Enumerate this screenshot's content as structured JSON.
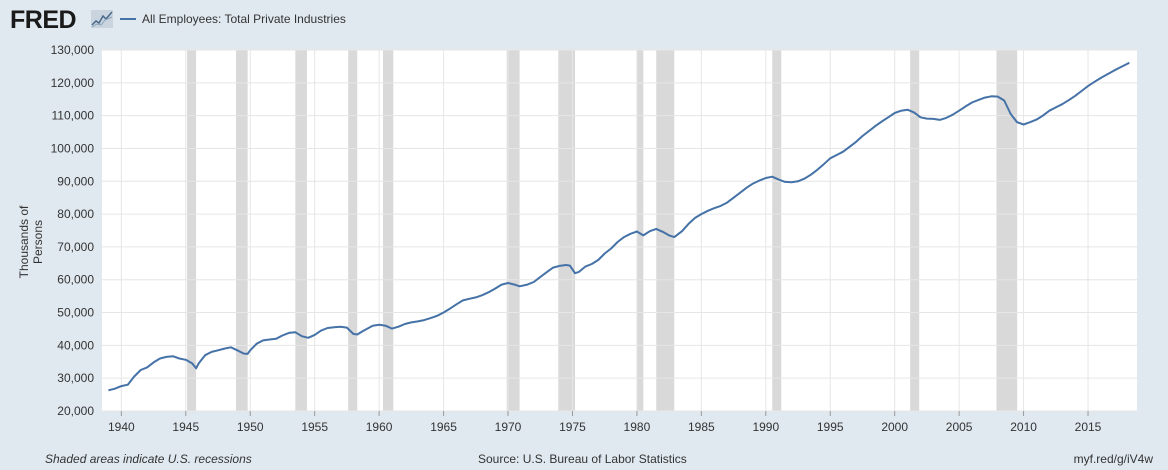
{
  "logo": {
    "text": "FRED",
    "icon": "fred-sparkline-icon"
  },
  "legend": {
    "label": "All Employees: Total Private Industries",
    "color": "#4572a7"
  },
  "footer": {
    "recession_note": "Shaded areas indicate U.S. recessions",
    "source": "Source: U.S. Bureau of Labor Statistics",
    "link": "myf.red/g/iV4w"
  },
  "chart_data": {
    "type": "line",
    "title": "",
    "xlabel": "",
    "ylabel": "Thousands of Persons",
    "ylim": [
      20000,
      130000
    ],
    "xlim": [
      1938.5,
      2018.8
    ],
    "yticks": [
      "20,000",
      "30,000",
      "40,000",
      "50,000",
      "60,000",
      "70,000",
      "80,000",
      "90,000",
      "100,000",
      "110,000",
      "120,000",
      "130,000"
    ],
    "xticks": [
      "1940",
      "1945",
      "1950",
      "1955",
      "1960",
      "1965",
      "1970",
      "1975",
      "1980",
      "1985",
      "1990",
      "1995",
      "2000",
      "2005",
      "2010",
      "2015"
    ],
    "grid": true,
    "legend_position": "top-left",
    "line_color": "#4572a7",
    "recession_color": "#d9d9d9",
    "recessions": [
      [
        1945.1,
        1945.8
      ],
      [
        1948.9,
        1949.8
      ],
      [
        1953.5,
        1954.4
      ],
      [
        1957.6,
        1958.3
      ],
      [
        1960.3,
        1961.1
      ],
      [
        1969.9,
        1970.9
      ],
      [
        1973.9,
        1975.2
      ],
      [
        1980.0,
        1980.5
      ],
      [
        1981.5,
        1982.9
      ],
      [
        1990.5,
        1991.2
      ],
      [
        2001.2,
        2001.9
      ],
      [
        2007.9,
        2009.5
      ]
    ],
    "series": [
      {
        "name": "All Employees: Total Private Industries",
        "points": [
          [
            1939.0,
            26300
          ],
          [
            1939.5,
            26800
          ],
          [
            1940.0,
            27600
          ],
          [
            1940.5,
            28000
          ],
          [
            1941.0,
            30500
          ],
          [
            1941.5,
            32500
          ],
          [
            1942.0,
            33300
          ],
          [
            1942.5,
            34800
          ],
          [
            1943.0,
            36000
          ],
          [
            1943.5,
            36500
          ],
          [
            1944.0,
            36700
          ],
          [
            1944.5,
            36000
          ],
          [
            1945.0,
            35600
          ],
          [
            1945.5,
            34500
          ],
          [
            1945.8,
            33000
          ],
          [
            1946.0,
            34500
          ],
          [
            1946.5,
            37000
          ],
          [
            1947.0,
            38000
          ],
          [
            1947.5,
            38500
          ],
          [
            1948.0,
            39000
          ],
          [
            1948.5,
            39400
          ],
          [
            1949.0,
            38500
          ],
          [
            1949.5,
            37500
          ],
          [
            1949.8,
            37400
          ],
          [
            1950.0,
            38500
          ],
          [
            1950.5,
            40500
          ],
          [
            1951.0,
            41500
          ],
          [
            1951.5,
            41800
          ],
          [
            1952.0,
            42000
          ],
          [
            1952.5,
            43000
          ],
          [
            1953.0,
            43800
          ],
          [
            1953.5,
            44000
          ],
          [
            1954.0,
            42800
          ],
          [
            1954.5,
            42300
          ],
          [
            1955.0,
            43200
          ],
          [
            1955.5,
            44500
          ],
          [
            1956.0,
            45300
          ],
          [
            1956.5,
            45500
          ],
          [
            1957.0,
            45700
          ],
          [
            1957.5,
            45400
          ],
          [
            1958.0,
            43500
          ],
          [
            1958.3,
            43300
          ],
          [
            1958.8,
            44500
          ],
          [
            1959.5,
            46000
          ],
          [
            1960.0,
            46300
          ],
          [
            1960.5,
            46000
          ],
          [
            1961.0,
            45100
          ],
          [
            1961.5,
            45700
          ],
          [
            1962.0,
            46500
          ],
          [
            1962.5,
            47000
          ],
          [
            1963.0,
            47300
          ],
          [
            1963.5,
            47700
          ],
          [
            1964.0,
            48300
          ],
          [
            1964.5,
            49000
          ],
          [
            1965.0,
            50000
          ],
          [
            1965.5,
            51200
          ],
          [
            1966.0,
            52500
          ],
          [
            1966.5,
            53700
          ],
          [
            1967.0,
            54200
          ],
          [
            1967.5,
            54600
          ],
          [
            1968.0,
            55300
          ],
          [
            1968.5,
            56200
          ],
          [
            1969.0,
            57300
          ],
          [
            1969.5,
            58500
          ],
          [
            1970.0,
            59000
          ],
          [
            1970.5,
            58500
          ],
          [
            1970.9,
            58000
          ],
          [
            1971.5,
            58500
          ],
          [
            1972.0,
            59300
          ],
          [
            1972.5,
            60800
          ],
          [
            1973.0,
            62300
          ],
          [
            1973.5,
            63700
          ],
          [
            1974.0,
            64200
          ],
          [
            1974.5,
            64500
          ],
          [
            1974.8,
            64300
          ],
          [
            1975.2,
            62000
          ],
          [
            1975.5,
            62400
          ],
          [
            1976.0,
            64000
          ],
          [
            1976.5,
            64800
          ],
          [
            1977.0,
            66000
          ],
          [
            1977.5,
            68000
          ],
          [
            1978.0,
            69500
          ],
          [
            1978.5,
            71500
          ],
          [
            1979.0,
            73000
          ],
          [
            1979.5,
            74000
          ],
          [
            1980.0,
            74700
          ],
          [
            1980.5,
            73500
          ],
          [
            1981.0,
            74800
          ],
          [
            1981.5,
            75500
          ],
          [
            1982.0,
            74600
          ],
          [
            1982.5,
            73500
          ],
          [
            1982.9,
            73000
          ],
          [
            1983.5,
            74800
          ],
          [
            1984.0,
            77000
          ],
          [
            1984.5,
            78800
          ],
          [
            1985.0,
            80000
          ],
          [
            1985.5,
            81000
          ],
          [
            1986.0,
            81800
          ],
          [
            1986.5,
            82500
          ],
          [
            1987.0,
            83500
          ],
          [
            1987.5,
            85000
          ],
          [
            1988.0,
            86500
          ],
          [
            1988.5,
            88000
          ],
          [
            1989.0,
            89300
          ],
          [
            1989.5,
            90200
          ],
          [
            1990.0,
            91000
          ],
          [
            1990.5,
            91400
          ],
          [
            1991.0,
            90500
          ],
          [
            1991.5,
            89800
          ],
          [
            1992.0,
            89700
          ],
          [
            1992.5,
            90000
          ],
          [
            1993.0,
            90800
          ],
          [
            1993.5,
            92000
          ],
          [
            1994.0,
            93500
          ],
          [
            1994.5,
            95200
          ],
          [
            1995.0,
            97000
          ],
          [
            1995.5,
            98000
          ],
          [
            1996.0,
            99000
          ],
          [
            1996.5,
            100500
          ],
          [
            1997.0,
            102000
          ],
          [
            1997.5,
            103800
          ],
          [
            1998.0,
            105300
          ],
          [
            1998.5,
            106800
          ],
          [
            1999.0,
            108200
          ],
          [
            1999.5,
            109500
          ],
          [
            2000.0,
            110800
          ],
          [
            2000.5,
            111500
          ],
          [
            2001.0,
            111800
          ],
          [
            2001.5,
            111000
          ],
          [
            2002.0,
            109500
          ],
          [
            2002.5,
            109100
          ],
          [
            2003.0,
            109000
          ],
          [
            2003.5,
            108700
          ],
          [
            2004.0,
            109300
          ],
          [
            2004.5,
            110300
          ],
          [
            2005.0,
            111500
          ],
          [
            2005.5,
            112800
          ],
          [
            2006.0,
            114000
          ],
          [
            2006.5,
            114800
          ],
          [
            2007.0,
            115500
          ],
          [
            2007.5,
            115900
          ],
          [
            2008.0,
            115800
          ],
          [
            2008.5,
            114600
          ],
          [
            2009.0,
            110500
          ],
          [
            2009.5,
            108000
          ],
          [
            2010.0,
            107300
          ],
          [
            2010.5,
            108000
          ],
          [
            2011.0,
            108800
          ],
          [
            2011.5,
            110000
          ],
          [
            2012.0,
            111500
          ],
          [
            2012.5,
            112500
          ],
          [
            2013.0,
            113500
          ],
          [
            2013.5,
            114700
          ],
          [
            2014.0,
            116000
          ],
          [
            2014.5,
            117500
          ],
          [
            2015.0,
            119000
          ],
          [
            2015.5,
            120300
          ],
          [
            2016.0,
            121500
          ],
          [
            2016.5,
            122600
          ],
          [
            2017.0,
            123700
          ],
          [
            2017.5,
            124700
          ],
          [
            2018.0,
            125700
          ],
          [
            2018.2,
            126100
          ]
        ]
      }
    ]
  }
}
